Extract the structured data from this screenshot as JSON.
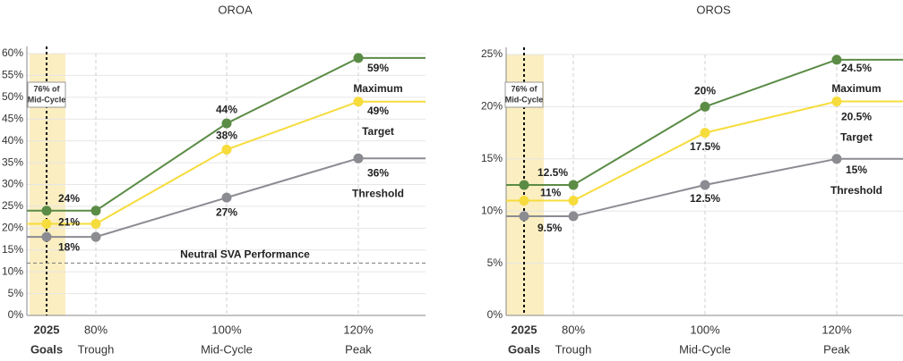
{
  "chart_data": [
    {
      "type": "line",
      "title": "OROA",
      "categories": [
        "2025",
        "80%",
        "100%",
        "120%"
      ],
      "category_sublabels": [
        "Goals",
        "Trough",
        "Mid-Cycle",
        "Peak"
      ],
      "series": [
        {
          "name": "Maximum",
          "color": "#5b8c46",
          "values": [
            24,
            24,
            44,
            59
          ],
          "value_labels": [
            "24%",
            null,
            "44%",
            "59%"
          ]
        },
        {
          "name": "Target",
          "color": "#f6dc3c",
          "values": [
            21,
            21,
            38,
            49
          ],
          "value_labels": [
            "21%",
            null,
            "38%",
            "49%"
          ]
        },
        {
          "name": "Threshold",
          "color": "#8b8b92",
          "values": [
            18,
            18,
            27,
            36
          ],
          "value_labels": [
            "18%",
            null,
            "27%",
            "36%"
          ]
        }
      ],
      "ylim": [
        0,
        60
      ],
      "yticks": [
        {
          "value": 0,
          "label": "0%"
        },
        {
          "value": 5,
          "label": "5%"
        },
        {
          "value": 10,
          "label": "10%"
        },
        {
          "value": 15,
          "label": "15%"
        },
        {
          "value": 20,
          "label": "20%"
        },
        {
          "value": 25,
          "label": "25%"
        },
        {
          "value": 30,
          "label": "30%"
        },
        {
          "value": 35,
          "label": "35%"
        },
        {
          "value": 40,
          "label": "40%"
        },
        {
          "value": 45,
          "label": "45%"
        },
        {
          "value": 50,
          "label": "50%"
        },
        {
          "value": 55,
          "label": "55%"
        },
        {
          "value": 60,
          "label": "60%"
        }
      ],
      "grid": true,
      "goal_note_lines": [
        "76% of",
        "Mid-Cycle"
      ],
      "reference_line": {
        "value": 12,
        "label": "Neutral SVA Performance"
      }
    },
    {
      "type": "line",
      "title": "OROS",
      "categories": [
        "2025",
        "80%",
        "100%",
        "120%"
      ],
      "category_sublabels": [
        "Goals",
        "Trough",
        "Mid-Cycle",
        "Peak"
      ],
      "series": [
        {
          "name": "Maximum",
          "color": "#5b8c46",
          "values": [
            12.5,
            12.5,
            20,
            24.5
          ],
          "value_labels": [
            "12.5%",
            null,
            "20%",
            "24.5%"
          ]
        },
        {
          "name": "Target",
          "color": "#f6dc3c",
          "values": [
            11,
            11,
            17.5,
            20.5
          ],
          "value_labels": [
            "11%",
            null,
            "17.5%",
            "20.5%"
          ]
        },
        {
          "name": "Threshold",
          "color": "#8b8b92",
          "values": [
            9.5,
            9.5,
            12.5,
            15
          ],
          "value_labels": [
            "9.5%",
            null,
            "12.5%",
            "15%"
          ]
        }
      ],
      "ylim": [
        0,
        25
      ],
      "yticks": [
        {
          "value": 0,
          "label": "0%"
        },
        {
          "value": 5,
          "label": "5%"
        },
        {
          "value": 10,
          "label": "10%"
        },
        {
          "value": 15,
          "label": "15%"
        },
        {
          "value": 20,
          "label": "20%"
        },
        {
          "value": 25,
          "label": "25%"
        }
      ],
      "grid": true,
      "goal_note_lines": [
        "76% of",
        "Mid-Cycle"
      ]
    }
  ]
}
